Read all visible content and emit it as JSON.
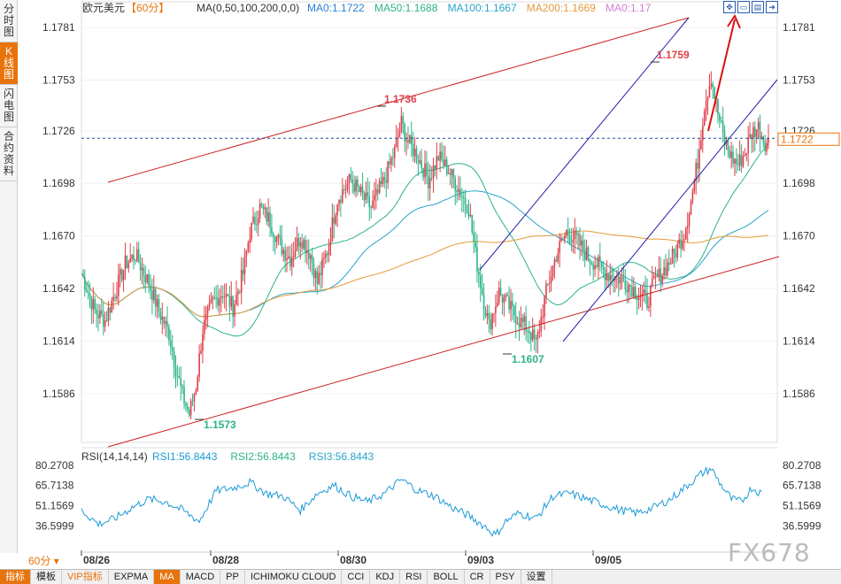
{
  "sidebar": {
    "tabs": [
      {
        "label": "分时图",
        "active": false
      },
      {
        "label": "K线图",
        "active": true
      },
      {
        "label": "闪电图",
        "active": false
      },
      {
        "label": "合约资料",
        "active": false
      }
    ]
  },
  "header": {
    "symbol": "欧元美元",
    "period_tag": "【60分】",
    "ma_params": "MA(0,50,100,200,0,0)",
    "ma_values": [
      {
        "label": "MA0:1.1722",
        "color": "#2a7fd4"
      },
      {
        "label": "MA50:1.1688",
        "color": "#2db38a"
      },
      {
        "label": "MA100:1.1667",
        "color": "#29a3c9"
      },
      {
        "label": "MA200:1.1669",
        "color": "#e39a3b"
      },
      {
        "label": "MA0:1.17",
        "color": "#d47fd4"
      }
    ]
  },
  "toolbar": {
    "icons": [
      "fullscreen-icon",
      "layout-icon",
      "chart-toggle-icon",
      "exit-icon"
    ]
  },
  "chart_data": [
    {
      "type": "candlestick",
      "instrument": "欧元美元",
      "period": "60分",
      "y_ticks": [
        "1.1781",
        "1.1753",
        "1.1726",
        "1.1698",
        "1.1670",
        "1.1642",
        "1.1614",
        "1.1586"
      ],
      "ylim": [
        1.156,
        1.179
      ],
      "x_ticks": [
        "08/26",
        "08/28",
        "08/30",
        "09/03",
        "09/05"
      ],
      "current_price": "1.1722",
      "annotations": [
        "1.1736",
        "1.1759",
        "1.1607",
        "1.1573"
      ],
      "keypoints_close": [
        [
          0,
          1.165
        ],
        [
          8,
          1.163
        ],
        [
          14,
          1.1625
        ],
        [
          20,
          1.164
        ],
        [
          26,
          1.1655
        ],
        [
          32,
          1.166
        ],
        [
          40,
          1.1645
        ],
        [
          46,
          1.163
        ],
        [
          52,
          1.1618
        ],
        [
          56,
          1.16
        ],
        [
          60,
          1.1585
        ],
        [
          64,
          1.1575
        ],
        [
          68,
          1.159
        ],
        [
          72,
          1.162
        ],
        [
          78,
          1.1635
        ],
        [
          84,
          1.164
        ],
        [
          90,
          1.1632
        ],
        [
          96,
          1.165
        ],
        [
          100,
          1.1672
        ],
        [
          106,
          1.1685
        ],
        [
          112,
          1.1678
        ],
        [
          118,
          1.1665
        ],
        [
          124,
          1.1658
        ],
        [
          130,
          1.167
        ],
        [
          136,
          1.166
        ],
        [
          140,
          1.1645
        ],
        [
          146,
          1.1662
        ],
        [
          152,
          1.169
        ],
        [
          160,
          1.17
        ],
        [
          166,
          1.1692
        ],
        [
          172,
          1.1685
        ],
        [
          180,
          1.17
        ],
        [
          186,
          1.1715
        ],
        [
          190,
          1.173
        ],
        [
          194,
          1.172
        ],
        [
          200,
          1.1712
        ],
        [
          206,
          1.17
        ],
        [
          212,
          1.1712
        ],
        [
          218,
          1.1705
        ],
        [
          224,
          1.1695
        ],
        [
          230,
          1.1685
        ],
        [
          234,
          1.166
        ],
        [
          238,
          1.164
        ],
        [
          242,
          1.1622
        ],
        [
          248,
          1.164
        ],
        [
          254,
          1.1632
        ],
        [
          260,
          1.1625
        ],
        [
          266,
          1.162
        ],
        [
          270,
          1.1612
        ],
        [
          276,
          1.164
        ],
        [
          282,
          1.166
        ],
        [
          288,
          1.1672
        ],
        [
          294,
          1.1668
        ],
        [
          300,
          1.166
        ],
        [
          306,
          1.1655
        ],
        [
          312,
          1.165
        ],
        [
          318,
          1.1648
        ],
        [
          324,
          1.1645
        ],
        [
          330,
          1.164
        ],
        [
          336,
          1.1635
        ],
        [
          340,
          1.1645
        ],
        [
          346,
          1.1652
        ],
        [
          352,
          1.166
        ],
        [
          358,
          1.1672
        ],
        [
          362,
          1.1688
        ],
        [
          366,
          1.171
        ],
        [
          370,
          1.174
        ],
        [
          374,
          1.1755
        ],
        [
          378,
          1.1735
        ],
        [
          382,
          1.172
        ],
        [
          386,
          1.1712
        ],
        [
          390,
          1.1708
        ],
        [
          394,
          1.1714
        ],
        [
          398,
          1.1725
        ],
        [
          402,
          1.1728
        ],
        [
          406,
          1.172
        ]
      ],
      "indicators": [
        "MA50",
        "MA100",
        "MA200"
      ]
    },
    {
      "type": "line",
      "title": "RSI(14,14,14)",
      "series": [
        {
          "name": "RSI1:56.8443",
          "color": "#1a9ad6"
        },
        {
          "name": "RSI2:56.8443",
          "color": "#2db38a"
        },
        {
          "name": "RSI3:56.8443",
          "color": "#29a3c9"
        }
      ],
      "y_ticks": [
        "80.2708",
        "65.7138",
        "51.1569",
        "36.5999"
      ],
      "ylim": [
        28,
        84
      ],
      "keypoints": [
        [
          0,
          48
        ],
        [
          10,
          38
        ],
        [
          20,
          42
        ],
        [
          30,
          50
        ],
        [
          40,
          56
        ],
        [
          50,
          54
        ],
        [
          60,
          48
        ],
        [
          70,
          40
        ],
        [
          80,
          62
        ],
        [
          90,
          64
        ],
        [
          100,
          68
        ],
        [
          110,
          60
        ],
        [
          120,
          58
        ],
        [
          130,
          48
        ],
        [
          140,
          60
        ],
        [
          150,
          66
        ],
        [
          160,
          58
        ],
        [
          170,
          54
        ],
        [
          180,
          60
        ],
        [
          190,
          70
        ],
        [
          200,
          62
        ],
        [
          210,
          58
        ],
        [
          220,
          50
        ],
        [
          230,
          44
        ],
        [
          240,
          36
        ],
        [
          246,
          30
        ],
        [
          252,
          40
        ],
        [
          260,
          46
        ],
        [
          270,
          42
        ],
        [
          280,
          58
        ],
        [
          290,
          60
        ],
        [
          300,
          56
        ],
        [
          310,
          52
        ],
        [
          320,
          48
        ],
        [
          330,
          46
        ],
        [
          340,
          50
        ],
        [
          350,
          56
        ],
        [
          360,
          66
        ],
        [
          368,
          74
        ],
        [
          374,
          78
        ],
        [
          380,
          66
        ],
        [
          386,
          56
        ],
        [
          392,
          54
        ],
        [
          398,
          64
        ],
        [
          404,
          60
        ]
      ]
    }
  ],
  "period_selector": "60分",
  "bottom_tabs": [
    {
      "label": "指标",
      "style": "sel"
    },
    {
      "label": "模板",
      "style": ""
    },
    {
      "label": "VIP指标",
      "style": "vip"
    },
    {
      "label": "EXPMA",
      "style": ""
    },
    {
      "label": "MA",
      "style": "sel"
    },
    {
      "label": "MACD",
      "style": ""
    },
    {
      "label": "PP",
      "style": ""
    },
    {
      "label": "ICHIMOKU CLOUD",
      "style": ""
    },
    {
      "label": "CCI",
      "style": ""
    },
    {
      "label": "KDJ",
      "style": ""
    },
    {
      "label": "RSI",
      "style": ""
    },
    {
      "label": "BOLL",
      "style": ""
    },
    {
      "label": "CR",
      "style": ""
    },
    {
      "label": "PSY",
      "style": ""
    },
    {
      "label": "设置",
      "style": ""
    }
  ],
  "watermark": "FX678",
  "colors": {
    "up": "#e0404a",
    "down": "#2db38a",
    "channel_red": "#cc2222",
    "channel_blue": "#1f1fa8",
    "accent": "#e8730c",
    "current_line": "#1a4d9c"
  }
}
